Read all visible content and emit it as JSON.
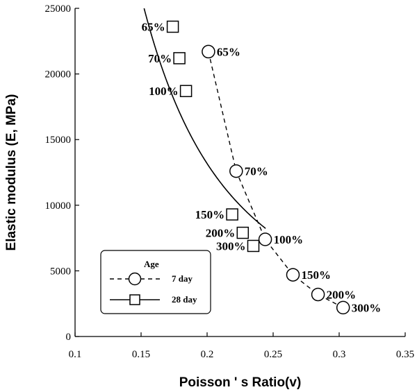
{
  "chart_data": {
    "type": "scatter",
    "xlabel": "Poisson ' s Ratio(v)",
    "ylabel": "Elastic modulus (E, MPa)",
    "xlim": [
      0.1,
      0.35
    ],
    "ylim": [
      0,
      25000
    ],
    "x_ticks": [
      "0.1",
      "0.15",
      "0.2",
      "0.25",
      "0.3",
      "0.35"
    ],
    "y_ticks": [
      "0",
      "5000",
      "10000",
      "15000",
      "20000",
      "25000"
    ],
    "grid": false,
    "legend_position": "bottom-left",
    "legend_title": "Age",
    "series": [
      {
        "name": "7 day",
        "marker": "circle",
        "line": "dashed",
        "points": [
          {
            "x": 0.201,
            "y": 21700,
            "label": "65%"
          },
          {
            "x": 0.222,
            "y": 12600,
            "label": "70%"
          },
          {
            "x": 0.244,
            "y": 7400,
            "label": "100%"
          },
          {
            "x": 0.265,
            "y": 4700,
            "label": "150%"
          },
          {
            "x": 0.284,
            "y": 3200,
            "label": "200%"
          },
          {
            "x": 0.303,
            "y": 2200,
            "label": "300%"
          }
        ]
      },
      {
        "name": "28 day",
        "marker": "square",
        "line": "solid",
        "points": [
          {
            "x": 0.174,
            "y": 23600,
            "label": "65%"
          },
          {
            "x": 0.179,
            "y": 21200,
            "label": "70%"
          },
          {
            "x": 0.184,
            "y": 18700,
            "label": "100%"
          },
          {
            "x": 0.219,
            "y": 9300,
            "label": "150%"
          },
          {
            "x": 0.227,
            "y": 7900,
            "label": "200%"
          },
          {
            "x": 0.235,
            "y": 6900,
            "label": "300%"
          }
        ]
      }
    ],
    "fit_curve_28day": {
      "a": 300,
      "b": -2.35
    }
  }
}
